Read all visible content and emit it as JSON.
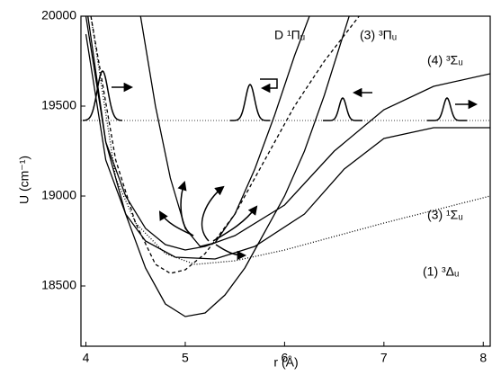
{
  "chart_data": {
    "type": "line",
    "xlabel": "r (Å)",
    "ylabel": "U (cm⁻¹)",
    "xlim": [
      3.95,
      8.07
    ],
    "ylim": [
      18165,
      20000
    ],
    "xticks": [
      4,
      5,
      6,
      7,
      8
    ],
    "yticks": [
      18500,
      19000,
      19500,
      20000
    ],
    "reference_line": 19420,
    "series": [
      {
        "color": "#000000",
        "dash": "solid",
        "x": [
          4.02,
          4.2,
          4.4,
          4.6,
          4.8,
          5.0,
          5.2,
          5.4,
          5.6,
          5.8,
          6.0,
          6.2,
          6.4,
          6.65
        ],
        "values": [
          20000,
          19300,
          18900,
          18600,
          18400,
          18330,
          18350,
          18450,
          18600,
          18800,
          19000,
          19250,
          19560,
          20000
        ]
      },
      {
        "name": "D ¹Πᵤ",
        "color": "#000000",
        "dash": "solid",
        "x": [
          4.55,
          4.7,
          4.85,
          5.0,
          5.15,
          5.3,
          5.5,
          5.7,
          5.9,
          6.1,
          6.25
        ],
        "values": [
          20000,
          19500,
          19100,
          18820,
          18720,
          18740,
          18900,
          19150,
          19450,
          19780,
          20000
        ]
      },
      {
        "name": "(3) ³Πᵤ",
        "color": "#000000",
        "dash": "dashed",
        "x": [
          4.05,
          4.3,
          4.5,
          4.7,
          4.85,
          5.0,
          5.2,
          5.5,
          5.8,
          6.1,
          6.4,
          6.75
        ],
        "values": [
          20000,
          19200,
          18850,
          18620,
          18570,
          18590,
          18680,
          18900,
          19200,
          19500,
          19750,
          20000
        ]
      },
      {
        "name": "(4) ³Σᵤ",
        "color": "#000000",
        "dash": "solid",
        "x": [
          4.0,
          4.2,
          4.4,
          4.6,
          4.8,
          5.0,
          5.2,
          5.5,
          6.0,
          6.5,
          7.0,
          7.5,
          8.07
        ],
        "values": [
          20000,
          19300,
          19000,
          18820,
          18730,
          18700,
          18720,
          18780,
          18950,
          19250,
          19480,
          19610,
          19680
        ]
      },
      {
        "name": "(3) ¹Σᵤ",
        "color": "#000000",
        "dash": "solid",
        "x": [
          4.0,
          4.2,
          4.4,
          4.6,
          4.9,
          5.3,
          5.7,
          6.2,
          6.6,
          7.0,
          7.5,
          8.07
        ],
        "values": [
          19900,
          19200,
          18900,
          18750,
          18660,
          18650,
          18720,
          18900,
          19150,
          19320,
          19380,
          19380
        ]
      },
      {
        "name": "(1) ³Δᵤ",
        "color": "#000000",
        "dash": "dotted",
        "x": [
          4.05,
          4.3,
          4.5,
          4.8,
          5.1,
          5.5,
          6.0,
          7.0,
          8.07
        ],
        "values": [
          20000,
          19100,
          18850,
          18680,
          18620,
          18640,
          18700,
          18850,
          19000
        ]
      }
    ]
  }
}
